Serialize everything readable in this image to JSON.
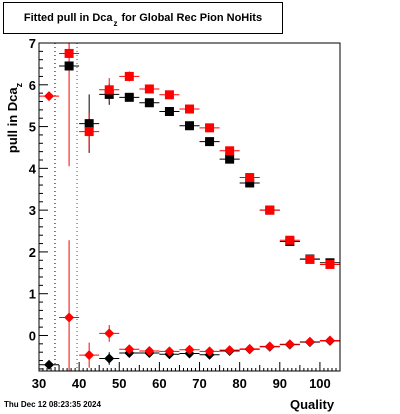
{
  "title_main": "Fitted pull in Dca",
  "title_sub": "z",
  "title_rest": "for Global Rec Pion NoHits",
  "ylabel_main": "pull in Dca",
  "ylabel_sub": "z",
  "xlabel": "Quality",
  "timestamp": "Thu Dec 12 08:23:35 2024",
  "chart_data": {
    "type": "scatter",
    "xlim": [
      30,
      105
    ],
    "ylim": [
      -0.85,
      7
    ],
    "xticks": [
      30,
      40,
      50,
      60,
      70,
      80,
      90,
      100
    ],
    "yticks": [
      0,
      1,
      2,
      3,
      4,
      5,
      6,
      7
    ],
    "colors": {
      "black": "#000000",
      "red": "#ff0000"
    },
    "series": [
      {
        "marker": "square",
        "color": "#000000",
        "points": [
          {
            "x": 37.5,
            "y": 6.45,
            "xerr": 2.5,
            "yerr": 0
          },
          {
            "x": 42.5,
            "y": 5.07,
            "xerr": 2.5,
            "yerr": 0.7
          },
          {
            "x": 47.5,
            "y": 5.77,
            "xerr": 2.5,
            "yerr": 0.25
          },
          {
            "x": 52.5,
            "y": 5.7,
            "xerr": 2.5,
            "yerr": 0.1
          },
          {
            "x": 57.5,
            "y": 5.57,
            "xerr": 2.5,
            "yerr": 0.05
          },
          {
            "x": 62.5,
            "y": 5.36,
            "xerr": 2.5,
            "yerr": 0.05
          },
          {
            "x": 67.5,
            "y": 5.02,
            "xerr": 2.5,
            "yerr": 0.04
          },
          {
            "x": 72.5,
            "y": 4.64,
            "xerr": 2.5,
            "yerr": 0.04
          },
          {
            "x": 77.5,
            "y": 4.22,
            "xerr": 2.5,
            "yerr": 0.04
          },
          {
            "x": 82.5,
            "y": 3.65,
            "xerr": 2.5,
            "yerr": 0.04
          },
          {
            "x": 87.5,
            "y": 3.0,
            "xerr": 2.5,
            "yerr": 0.03
          },
          {
            "x": 92.5,
            "y": 2.25,
            "xerr": 2.5,
            "yerr": 0.03
          },
          {
            "x": 97.5,
            "y": 1.83,
            "xerr": 2.5,
            "yerr": 0.03
          },
          {
            "x": 102.5,
            "y": 1.74,
            "xerr": 2.5,
            "yerr": 0.03
          }
        ]
      },
      {
        "marker": "square",
        "color": "#ff0000",
        "points": [
          {
            "x": 37.5,
            "y": 6.75,
            "xerr": 2.5,
            "yerr": 2.7
          },
          {
            "x": 42.5,
            "y": 4.88,
            "xerr": 2.5,
            "yerr": 0.45
          },
          {
            "x": 47.5,
            "y": 5.88,
            "xerr": 2.5,
            "yerr": 0.28
          },
          {
            "x": 52.5,
            "y": 6.2,
            "xerr": 2.5,
            "yerr": 0.12
          },
          {
            "x": 57.5,
            "y": 5.9,
            "xerr": 2.5,
            "yerr": 0.06
          },
          {
            "x": 62.5,
            "y": 5.76,
            "xerr": 2.5,
            "yerr": 0.05
          },
          {
            "x": 67.5,
            "y": 5.42,
            "xerr": 2.5,
            "yerr": 0.05
          },
          {
            "x": 72.5,
            "y": 4.97,
            "xerr": 2.5,
            "yerr": 0.05
          },
          {
            "x": 77.5,
            "y": 4.42,
            "xerr": 2.5,
            "yerr": 0.04
          },
          {
            "x": 82.5,
            "y": 3.78,
            "xerr": 2.5,
            "yerr": 0.04
          },
          {
            "x": 87.5,
            "y": 3.0,
            "xerr": 2.5,
            "yerr": 0.03
          },
          {
            "x": 92.5,
            "y": 2.28,
            "xerr": 2.5,
            "yerr": 0.03
          },
          {
            "x": 97.5,
            "y": 1.82,
            "xerr": 2.5,
            "yerr": 0.03
          },
          {
            "x": 102.5,
            "y": 1.7,
            "xerr": 2.5,
            "yerr": 0.03
          }
        ]
      },
      {
        "marker": "diamond",
        "color": "#000000",
        "points": [
          {
            "x": 32.5,
            "y": -0.7,
            "xerr": 2.5,
            "yerr": 0
          },
          {
            "x": 47.5,
            "y": -0.55,
            "xerr": 2.5,
            "yerr": 0.15
          },
          {
            "x": 52.5,
            "y": -0.42,
            "xerr": 2.5,
            "yerr": 0.06
          },
          {
            "x": 57.5,
            "y": -0.42,
            "xerr": 2.5,
            "yerr": 0.04
          },
          {
            "x": 62.5,
            "y": -0.45,
            "xerr": 2.5,
            "yerr": 0.03
          },
          {
            "x": 67.5,
            "y": -0.43,
            "xerr": 2.5,
            "yerr": 0.03
          },
          {
            "x": 72.5,
            "y": -0.46,
            "xerr": 2.5,
            "yerr": 0.03
          },
          {
            "x": 77.5,
            "y": -0.37,
            "xerr": 2.5,
            "yerr": 0.03
          },
          {
            "x": 82.5,
            "y": -0.33,
            "xerr": 2.5,
            "yerr": 0.03
          },
          {
            "x": 87.5,
            "y": -0.27,
            "xerr": 2.5,
            "yerr": 0.03
          },
          {
            "x": 92.5,
            "y": -0.22,
            "xerr": 2.5,
            "yerr": 0.02
          },
          {
            "x": 97.5,
            "y": -0.16,
            "xerr": 2.5,
            "yerr": 0.02
          },
          {
            "x": 102.5,
            "y": -0.13,
            "xerr": 2.5,
            "yerr": 0.02
          }
        ]
      },
      {
        "marker": "diamond",
        "color": "#ff0000",
        "points": [
          {
            "x": 32.5,
            "y": 5.73,
            "xerr": 2.5,
            "yerr": 0
          },
          {
            "x": 37.5,
            "y": 0.43,
            "xerr": 2.5,
            "yerr": 1.85
          },
          {
            "x": 42.5,
            "y": -0.47,
            "xerr": 2.5,
            "yerr": 0.3
          },
          {
            "x": 47.5,
            "y": 0.05,
            "xerr": 2.5,
            "yerr": 0.2
          },
          {
            "x": 52.5,
            "y": -0.33,
            "xerr": 2.5,
            "yerr": 0.07
          },
          {
            "x": 57.5,
            "y": -0.37,
            "xerr": 2.5,
            "yerr": 0.05
          },
          {
            "x": 62.5,
            "y": -0.38,
            "xerr": 2.5,
            "yerr": 0.04
          },
          {
            "x": 67.5,
            "y": -0.34,
            "xerr": 2.5,
            "yerr": 0.03
          },
          {
            "x": 72.5,
            "y": -0.38,
            "xerr": 2.5,
            "yerr": 0.03
          },
          {
            "x": 77.5,
            "y": -0.35,
            "xerr": 2.5,
            "yerr": 0.03
          },
          {
            "x": 82.5,
            "y": -0.32,
            "xerr": 2.5,
            "yerr": 0.03
          },
          {
            "x": 87.5,
            "y": -0.26,
            "xerr": 2.5,
            "yerr": 0.03
          },
          {
            "x": 92.5,
            "y": -0.21,
            "xerr": 2.5,
            "yerr": 0.02
          },
          {
            "x": 97.5,
            "y": -0.15,
            "xerr": 2.5,
            "yerr": 0.02
          },
          {
            "x": 102.5,
            "y": -0.12,
            "xerr": 2.5,
            "yerr": 0.02
          }
        ]
      }
    ]
  }
}
